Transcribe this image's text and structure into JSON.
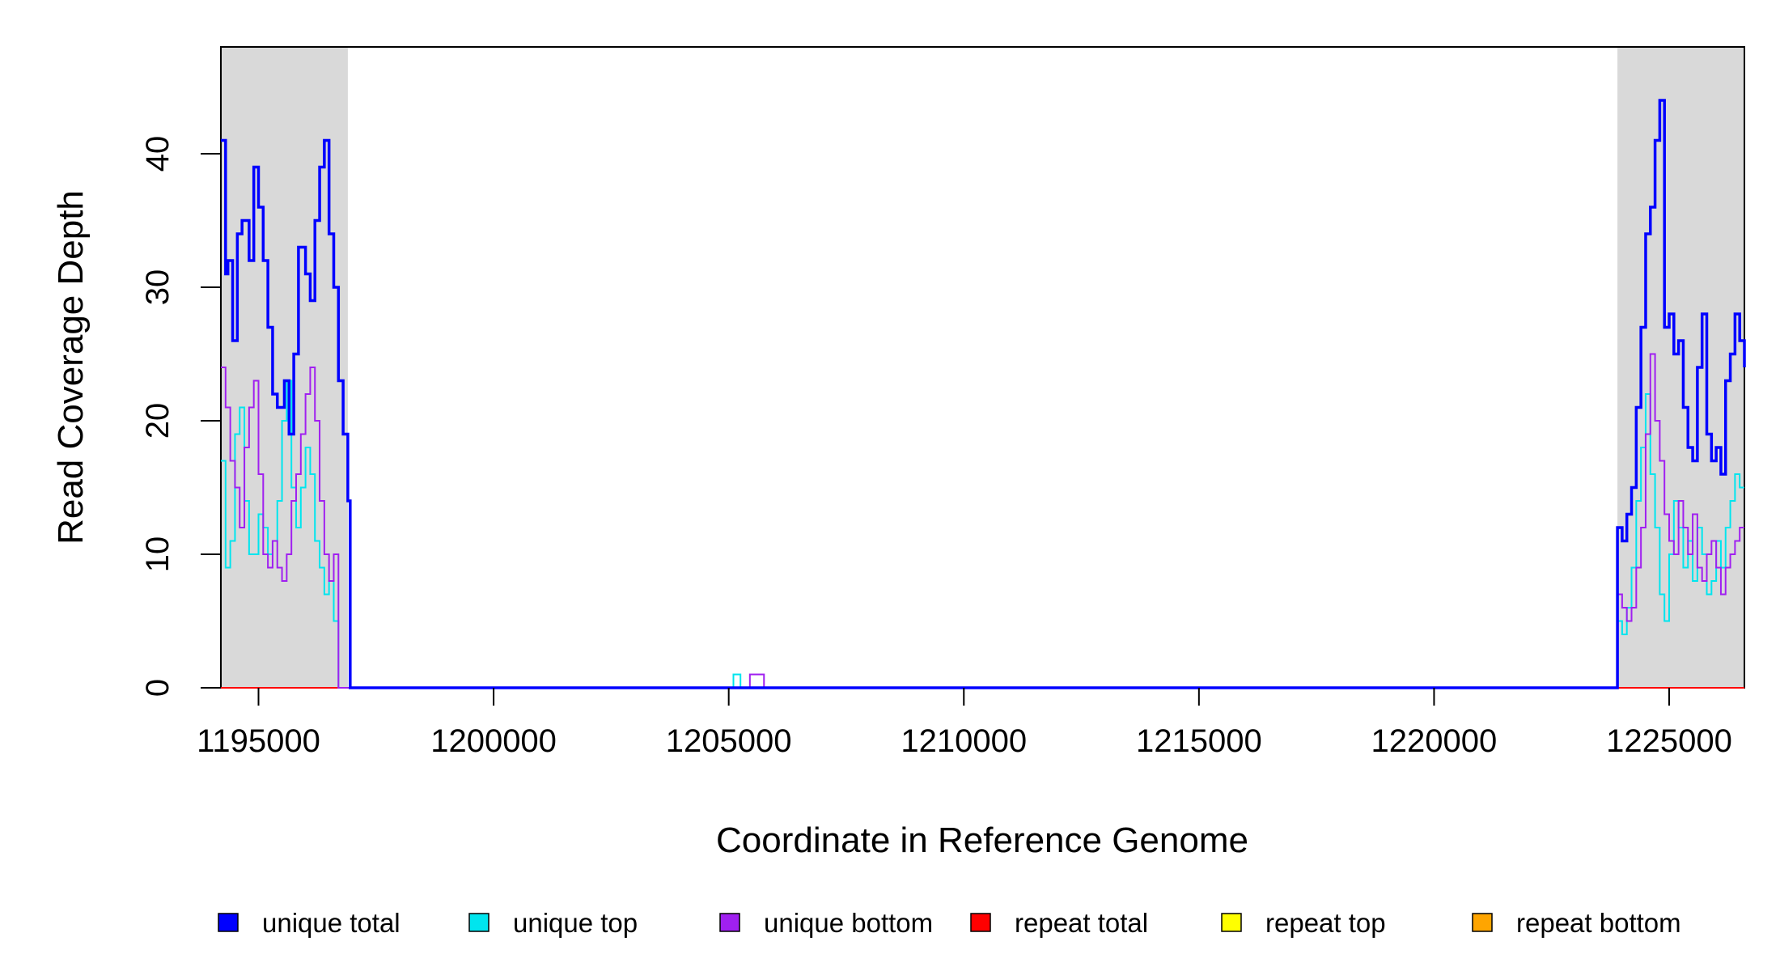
{
  "chart_data": {
    "type": "line",
    "title": "",
    "xlabel": "Coordinate in Reference Genome",
    "ylabel": "Read Coverage Depth",
    "xlim": [
      1194200,
      1226600
    ],
    "ylim": [
      0,
      48
    ],
    "x_ticks": [
      1195000,
      1200000,
      1205000,
      1210000,
      1215000,
      1220000,
      1225000
    ],
    "y_ticks": [
      0,
      10,
      20,
      30,
      40
    ],
    "shaded_regions": [
      {
        "x0": 1194200,
        "x1": 1196900,
        "color": "#d9d9d9"
      },
      {
        "x0": 1223900,
        "x1": 1226600,
        "color": "#d9d9d9"
      }
    ],
    "legend_placement": "bottom",
    "series": [
      {
        "name": "unique total",
        "color": "#0000ff",
        "x": [
          1194200,
          1194300,
          1194350,
          1194450,
          1194550,
          1194650,
          1194800,
          1194900,
          1195000,
          1195100,
          1195200,
          1195300,
          1195400,
          1195550,
          1195650,
          1195750,
          1195850,
          1196000,
          1196100,
          1196200,
          1196300,
          1196400,
          1196500,
          1196600,
          1196700,
          1196800,
          1196900,
          1196950,
          1205100,
          1205250,
          1205500,
          1205750,
          1223900,
          1224000,
          1224100,
          1224200,
          1224300,
          1224400,
          1224500,
          1224600,
          1224700,
          1224800,
          1224900,
          1225000,
          1225100,
          1225200,
          1225300,
          1225400,
          1225500,
          1225600,
          1225700,
          1225800,
          1225900,
          1226000,
          1226100,
          1226200,
          1226300,
          1226400,
          1226500,
          1226600
        ],
        "y": [
          41,
          31,
          32,
          26,
          34,
          35,
          32,
          39,
          36,
          32,
          27,
          22,
          21,
          23,
          19,
          25,
          33,
          31,
          29,
          35,
          39,
          41,
          34,
          30,
          23,
          19,
          14,
          0,
          0,
          0,
          0,
          0,
          12,
          11,
          13,
          15,
          21,
          27,
          34,
          36,
          41,
          44,
          27,
          28,
          25,
          26,
          21,
          18,
          17,
          24,
          28,
          19,
          17,
          18,
          16,
          23,
          25,
          28,
          26,
          24
        ]
      },
      {
        "name": "unique top",
        "color": "#00e5ee",
        "x": [
          1194200,
          1194300,
          1194400,
          1194500,
          1194600,
          1194700,
          1194800,
          1194900,
          1195000,
          1195100,
          1195200,
          1195300,
          1195400,
          1195500,
          1195600,
          1195700,
          1195800,
          1195900,
          1196000,
          1196100,
          1196200,
          1196300,
          1196400,
          1196500,
          1196600,
          1196700,
          1196800,
          1196900,
          1196950,
          1205100,
          1205250,
          1223900,
          1224000,
          1224100,
          1224200,
          1224300,
          1224400,
          1224500,
          1224600,
          1224700,
          1224800,
          1224900,
          1225000,
          1225100,
          1225200,
          1225300,
          1225400,
          1225500,
          1225600,
          1225700,
          1225800,
          1225900,
          1226000,
          1226100,
          1226200,
          1226300,
          1226400,
          1226500,
          1226600
        ],
        "y": [
          17,
          9,
          11,
          19,
          21,
          14,
          10,
          10,
          13,
          12,
          10,
          11,
          14,
          20,
          23,
          15,
          12,
          15,
          18,
          16,
          11,
          9,
          7,
          8,
          5,
          0,
          0,
          0,
          0,
          1,
          0,
          5,
          4,
          6,
          9,
          14,
          18,
          22,
          16,
          12,
          7,
          5,
          10,
          14,
          12,
          9,
          11,
          8,
          12,
          10,
          7,
          8,
          11,
          9,
          12,
          14,
          16,
          15,
          15
        ]
      },
      {
        "name": "unique bottom",
        "color": "#a020f0",
        "x": [
          1194200,
          1194300,
          1194400,
          1194500,
          1194600,
          1194700,
          1194800,
          1194900,
          1195000,
          1195100,
          1195200,
          1195300,
          1195400,
          1195500,
          1195600,
          1195700,
          1195800,
          1195900,
          1196000,
          1196100,
          1196200,
          1196300,
          1196400,
          1196500,
          1196600,
          1196700,
          1196800,
          1196900,
          1196950,
          1205450,
          1205750,
          1223900,
          1224000,
          1224100,
          1224200,
          1224300,
          1224400,
          1224500,
          1224600,
          1224700,
          1224800,
          1224900,
          1225000,
          1225100,
          1225200,
          1225300,
          1225400,
          1225500,
          1225600,
          1225700,
          1225800,
          1225900,
          1226000,
          1226100,
          1226200,
          1226300,
          1226400,
          1226500,
          1226600
        ],
        "y": [
          24,
          21,
          17,
          15,
          12,
          18,
          21,
          23,
          16,
          10,
          9,
          11,
          9,
          8,
          10,
          14,
          16,
          19,
          22,
          24,
          20,
          14,
          10,
          8,
          10,
          0,
          0,
          0,
          0,
          1,
          0,
          7,
          6,
          5,
          6,
          9,
          12,
          19,
          25,
          20,
          17,
          13,
          11,
          10,
          14,
          12,
          10,
          13,
          9,
          8,
          10,
          11,
          9,
          7,
          9,
          10,
          11,
          12,
          12
        ]
      },
      {
        "name": "repeat total",
        "color": "#ff0000",
        "x": [
          1194200,
          1226600
        ],
        "y": [
          0,
          0
        ]
      },
      {
        "name": "repeat top",
        "color": "#ffff00",
        "x": [
          1194200,
          1226600
        ],
        "y": [
          0,
          0
        ]
      },
      {
        "name": "repeat bottom",
        "color": "#ffa500",
        "x": [
          1194200,
          1226600
        ],
        "y": [
          0,
          0
        ]
      }
    ]
  }
}
